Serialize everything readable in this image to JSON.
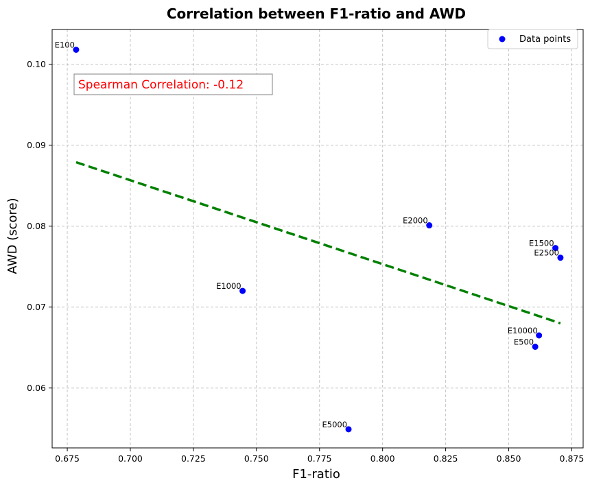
{
  "chart_data": {
    "type": "scatter",
    "title": "Correlation between F1-ratio and AWD",
    "xlabel": "F1-ratio",
    "ylabel": "AWD (score)",
    "xlim": [
      0.669,
      0.8795
    ],
    "ylim": [
      0.0526,
      0.1043
    ],
    "xticks": [
      0.675,
      0.7,
      0.725,
      0.75,
      0.775,
      0.8,
      0.825,
      0.85,
      0.875
    ],
    "xtick_labels": [
      "0.675",
      "0.700",
      "0.725",
      "0.750",
      "0.775",
      "0.800",
      "0.825",
      "0.850",
      "0.875"
    ],
    "yticks": [
      0.06,
      0.07,
      0.08,
      0.09,
      0.1
    ],
    "ytick_labels": [
      "0.06",
      "0.07",
      "0.08",
      "0.09",
      "0.10"
    ],
    "grid": true,
    "legend_position": "top-right",
    "series": [
      {
        "name": "Data points",
        "color": "#0000ff",
        "points": [
          {
            "label": "E100",
            "x": 0.6785,
            "y": 0.1018
          },
          {
            "label": "E500",
            "x": 0.8605,
            "y": 0.0651
          },
          {
            "label": "E1000",
            "x": 0.7445,
            "y": 0.072
          },
          {
            "label": "E1500",
            "x": 0.8685,
            "y": 0.0773
          },
          {
            "label": "E2000",
            "x": 0.8185,
            "y": 0.0801
          },
          {
            "label": "E2500",
            "x": 0.8705,
            "y": 0.0761
          },
          {
            "label": "E5000",
            "x": 0.7865,
            "y": 0.0549
          },
          {
            "label": "E10000",
            "x": 0.862,
            "y": 0.0665
          }
        ]
      }
    ],
    "trend_line": {
      "color": "#008000",
      "style": "dashed",
      "x": [
        0.6785,
        0.8705
      ],
      "y": [
        0.0879,
        0.068
      ]
    },
    "annotation": {
      "text": "Spearman Correlation: -0.12",
      "color": "#ff0000"
    }
  }
}
